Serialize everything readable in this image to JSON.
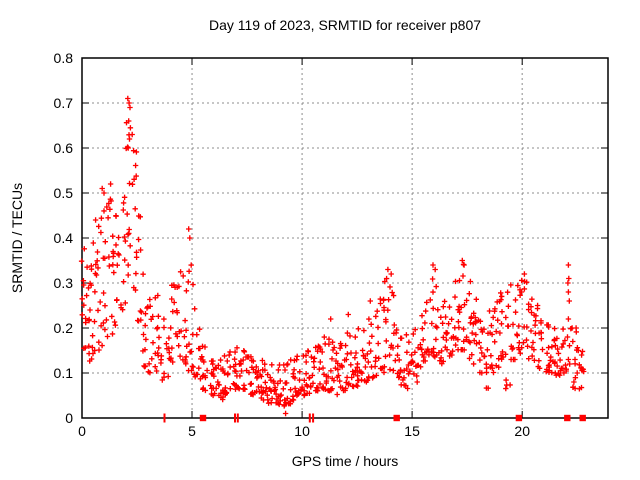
{
  "chart_data": {
    "type": "scatter",
    "title": "Day 119 of 2023, SRMTID for receiver p807",
    "xlabel": "GPS time / hours",
    "ylabel": "SRMTID / TECUs",
    "xlim": [
      0,
      23.9
    ],
    "ylim": [
      0,
      0.8
    ],
    "xticks": [
      0,
      5,
      10,
      15,
      20
    ],
    "xtick_labels": [
      "0",
      "5",
      "10",
      "15",
      "20"
    ],
    "yticks": [
      0,
      0.1,
      0.2,
      0.3,
      0.4,
      0.5,
      0.6,
      0.7,
      0.8
    ],
    "ytick_labels": [
      "0",
      "0.1",
      "0.2",
      "0.3",
      "0.4",
      "0.5",
      "0.6",
      "0.7",
      "0.8"
    ],
    "grid": true,
    "legend": "none",
    "marker": "plus",
    "colors": {
      "points": "#ff0000",
      "grid": "#8c8c8c",
      "axis": "#000000",
      "text": "#000000"
    },
    "series_name": "SRMTID",
    "y_max_observed": 0.71,
    "y_min_observed": 0.01,
    "density_columns": [
      [
        0.1,
        0.14,
        0.38,
        13
      ],
      [
        0.35,
        0.12,
        0.34,
        12
      ],
      [
        0.6,
        0.14,
        0.4,
        12
      ],
      [
        0.85,
        0.15,
        0.45,
        12
      ],
      [
        1.1,
        0.16,
        0.48,
        12
      ],
      [
        1.35,
        0.18,
        0.5,
        12
      ],
      [
        1.6,
        0.2,
        0.46,
        11
      ],
      [
        1.85,
        0.24,
        0.5,
        10
      ],
      [
        2.1,
        0.3,
        0.66,
        13
      ],
      [
        2.35,
        0.27,
        0.6,
        11
      ],
      [
        2.6,
        0.2,
        0.45,
        10
      ],
      [
        2.85,
        0.11,
        0.33,
        11
      ],
      [
        3.1,
        0.1,
        0.27,
        10
      ],
      [
        3.35,
        0.1,
        0.28,
        10
      ],
      [
        3.6,
        0.08,
        0.18,
        8
      ],
      [
        3.85,
        0.09,
        0.22,
        9
      ],
      [
        4.1,
        0.12,
        0.3,
        10
      ],
      [
        4.35,
        0.13,
        0.3,
        10
      ],
      [
        4.6,
        0.12,
        0.33,
        10
      ],
      [
        4.85,
        0.1,
        0.35,
        10
      ],
      [
        5.1,
        0.09,
        0.3,
        10
      ],
      [
        5.35,
        0.08,
        0.2,
        10
      ],
      [
        5.6,
        0.06,
        0.16,
        10
      ],
      [
        5.85,
        0.05,
        0.13,
        10
      ],
      [
        6.1,
        0.05,
        0.12,
        11
      ],
      [
        6.35,
        0.04,
        0.13,
        11
      ],
      [
        6.6,
        0.05,
        0.14,
        11
      ],
      [
        6.85,
        0.06,
        0.15,
        11
      ],
      [
        7.1,
        0.06,
        0.16,
        11
      ],
      [
        7.35,
        0.06,
        0.15,
        11
      ],
      [
        7.6,
        0.05,
        0.14,
        11
      ],
      [
        7.85,
        0.05,
        0.13,
        11
      ],
      [
        8.1,
        0.04,
        0.13,
        11
      ],
      [
        8.35,
        0.04,
        0.12,
        11
      ],
      [
        8.6,
        0.03,
        0.12,
        11
      ],
      [
        8.85,
        0.03,
        0.11,
        11
      ],
      [
        9.1,
        0.02,
        0.12,
        11
      ],
      [
        9.35,
        0.03,
        0.12,
        11
      ],
      [
        9.6,
        0.04,
        0.13,
        11
      ],
      [
        9.85,
        0.05,
        0.14,
        11
      ],
      [
        10.1,
        0.05,
        0.14,
        11
      ],
      [
        10.35,
        0.05,
        0.15,
        11
      ],
      [
        10.6,
        0.06,
        0.16,
        11
      ],
      [
        10.85,
        0.06,
        0.16,
        11
      ],
      [
        11.1,
        0.06,
        0.18,
        11
      ],
      [
        11.35,
        0.06,
        0.17,
        11
      ],
      [
        11.6,
        0.05,
        0.16,
        11
      ],
      [
        11.85,
        0.06,
        0.17,
        11
      ],
      [
        12.1,
        0.07,
        0.19,
        11
      ],
      [
        12.35,
        0.07,
        0.18,
        11
      ],
      [
        12.6,
        0.07,
        0.2,
        11
      ],
      [
        12.85,
        0.08,
        0.2,
        11
      ],
      [
        13.1,
        0.08,
        0.22,
        10
      ],
      [
        13.35,
        0.09,
        0.24,
        10
      ],
      [
        13.6,
        0.1,
        0.27,
        10
      ],
      [
        13.85,
        0.1,
        0.31,
        10
      ],
      [
        14.1,
        0.1,
        0.3,
        10
      ],
      [
        14.35,
        0.09,
        0.2,
        10
      ],
      [
        14.6,
        0.07,
        0.18,
        10
      ],
      [
        14.85,
        0.06,
        0.19,
        10
      ],
      [
        15.1,
        0.07,
        0.2,
        10
      ],
      [
        15.35,
        0.11,
        0.23,
        10
      ],
      [
        15.6,
        0.12,
        0.26,
        10
      ],
      [
        15.85,
        0.14,
        0.31,
        10
      ],
      [
        16.1,
        0.13,
        0.3,
        10
      ],
      [
        16.35,
        0.12,
        0.26,
        10
      ],
      [
        16.6,
        0.13,
        0.25,
        10
      ],
      [
        16.85,
        0.14,
        0.27,
        10
      ],
      [
        17.1,
        0.15,
        0.31,
        11
      ],
      [
        17.35,
        0.15,
        0.35,
        11
      ],
      [
        17.6,
        0.13,
        0.31,
        10
      ],
      [
        17.85,
        0.11,
        0.27,
        10
      ],
      [
        18.1,
        0.09,
        0.22,
        10
      ],
      [
        18.35,
        0.06,
        0.2,
        10
      ],
      [
        18.6,
        0.1,
        0.24,
        10
      ],
      [
        18.85,
        0.11,
        0.26,
        10
      ],
      [
        19.1,
        0.12,
        0.28,
        10
      ],
      [
        19.35,
        0.06,
        0.28,
        10
      ],
      [
        19.6,
        0.13,
        0.3,
        10
      ],
      [
        19.85,
        0.14,
        0.3,
        10
      ],
      [
        20.1,
        0.15,
        0.31,
        10
      ],
      [
        20.35,
        0.13,
        0.27,
        10
      ],
      [
        20.6,
        0.12,
        0.25,
        10
      ],
      [
        20.85,
        0.11,
        0.22,
        10
      ],
      [
        21.1,
        0.1,
        0.21,
        10
      ],
      [
        21.35,
        0.1,
        0.2,
        10
      ],
      [
        21.6,
        0.09,
        0.18,
        11
      ],
      [
        21.85,
        0.1,
        0.2,
        10
      ],
      [
        22.1,
        0.1,
        0.2,
        4
      ],
      [
        22.35,
        0.06,
        0.2,
        8
      ],
      [
        22.6,
        0.06,
        0.16,
        6
      ],
      [
        22.85,
        0.1,
        0.15,
        3
      ]
    ],
    "peak_points": [
      [
        2.08,
        0.71
      ],
      [
        2.14,
        0.7
      ],
      [
        2.18,
        0.69
      ],
      [
        2.12,
        0.66
      ],
      [
        2.2,
        0.645
      ],
      [
        2.28,
        0.63
      ],
      [
        2.16,
        0.62
      ],
      [
        2.1,
        0.6
      ],
      [
        0.92,
        0.51
      ],
      [
        1.3,
        0.52
      ],
      [
        1.0,
        0.5
      ],
      [
        0.62,
        0.44
      ],
      [
        4.85,
        0.42
      ],
      [
        4.9,
        0.4
      ],
      [
        9.25,
        0.01
      ],
      [
        11.3,
        0.22
      ],
      [
        12.1,
        0.23
      ],
      [
        13.1,
        0.26
      ],
      [
        13.9,
        0.33
      ],
      [
        14.05,
        0.32
      ],
      [
        15.95,
        0.34
      ],
      [
        16.05,
        0.33
      ],
      [
        17.28,
        0.35
      ],
      [
        17.36,
        0.34
      ],
      [
        20.1,
        0.32
      ],
      [
        22.1,
        0.34
      ],
      [
        22.12,
        0.31
      ],
      [
        22.08,
        0.3
      ],
      [
        22.1,
        0.28
      ],
      [
        22.14,
        0.26
      ],
      [
        22.1,
        0.22
      ],
      [
        22.06,
        0.18
      ],
      [
        22.1,
        0.13
      ],
      [
        22.16,
        0.12
      ],
      [
        22.45,
        0.2
      ],
      [
        22.3,
        0.17
      ],
      [
        22.55,
        0.15
      ],
      [
        22.4,
        0.13
      ],
      [
        22.7,
        0.14
      ],
      [
        22.5,
        0.1
      ],
      [
        22.35,
        0.08
      ],
      [
        22.6,
        0.065
      ]
    ],
    "baseline_markers": {
      "description": "red markers plotted on the y=0 axis line",
      "squares_x": [
        5.5,
        14.3,
        19.85,
        22.05,
        22.75
      ],
      "ticks_x": [
        3.75,
        6.95,
        7.08,
        10.35,
        10.5
      ]
    }
  }
}
